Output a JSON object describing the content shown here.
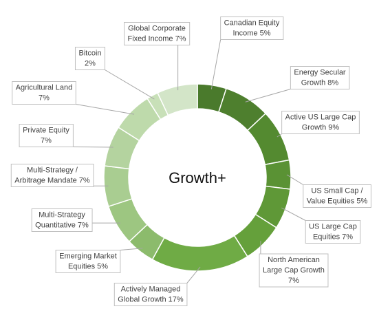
{
  "chart_data": {
    "type": "pie",
    "donut": true,
    "center_label": "Growth+",
    "slices": [
      {
        "label": [
          "Canadian Equity",
          "Income 5%"
        ],
        "category": "Canadian Equity Income",
        "value": 5,
        "color": "#4a7a2c"
      },
      {
        "label": [
          "Energy Secular",
          "Growth 8%"
        ],
        "category": "Energy Secular Growth",
        "value": 8,
        "color": "#4e7f2e"
      },
      {
        "label": [
          "Active US Large Cap",
          "Growth 9%"
        ],
        "category": "Active US Large Cap Growth",
        "value": 9,
        "color": "#548a30"
      },
      {
        "label": [
          "US Small Cap /",
          "Value Equities 5%"
        ],
        "category": "US Small Cap / Value Equities",
        "value": 5,
        "color": "#5a9234"
      },
      {
        "label": [
          "US Large Cap",
          "Equities 7%"
        ],
        "category": "US Large Cap Equities",
        "value": 7,
        "color": "#5f9837"
      },
      {
        "label": [
          "North American",
          "Large Cap Growth",
          "7%"
        ],
        "category": "North American Large Cap Growth",
        "value": 7,
        "color": "#65a03b"
      },
      {
        "label": [
          "Actively Managed",
          "Global Growth 17%"
        ],
        "category": "Actively Managed Global Growth",
        "value": 17,
        "color": "#6fab45"
      },
      {
        "label": [
          "Emerging Market",
          "Equities 5%"
        ],
        "category": "Emerging Market Equities",
        "value": 5,
        "color": "#8cbb6c"
      },
      {
        "label": [
          "Multi-Strategy",
          "Quantitative 7%"
        ],
        "category": "Multi-Strategy Quantitative",
        "value": 7,
        "color": "#9dc681"
      },
      {
        "label": [
          "Multi-Strategy /",
          "Arbitrage Mandate 7%"
        ],
        "category": "Multi-Strategy / Arbitrage Mandate",
        "value": 7,
        "color": "#a9cd91"
      },
      {
        "label": [
          "Private Equity",
          "7%"
        ],
        "category": "Private Equity",
        "value": 7,
        "color": "#b4d39f"
      },
      {
        "label": [
          "Agricultural Land",
          "7%"
        ],
        "category": "Agricultural Land",
        "value": 7,
        "color": "#bedaab"
      },
      {
        "label": [
          "Bitcoin",
          "2%"
        ],
        "category": "Bitcoin",
        "value": 2,
        "color": "#c8e0b8"
      },
      {
        "label": [
          "Global Corporate",
          "Fixed Income 7%"
        ],
        "category": "Global Corporate Fixed Income",
        "value": 7,
        "color": "#d3e5c8"
      }
    ],
    "colors": {
      "label_border": "#bfbfbf",
      "leader_line": "#a6a6a6",
      "label_text": "#404040",
      "slice_edge": "#ffffff"
    }
  }
}
